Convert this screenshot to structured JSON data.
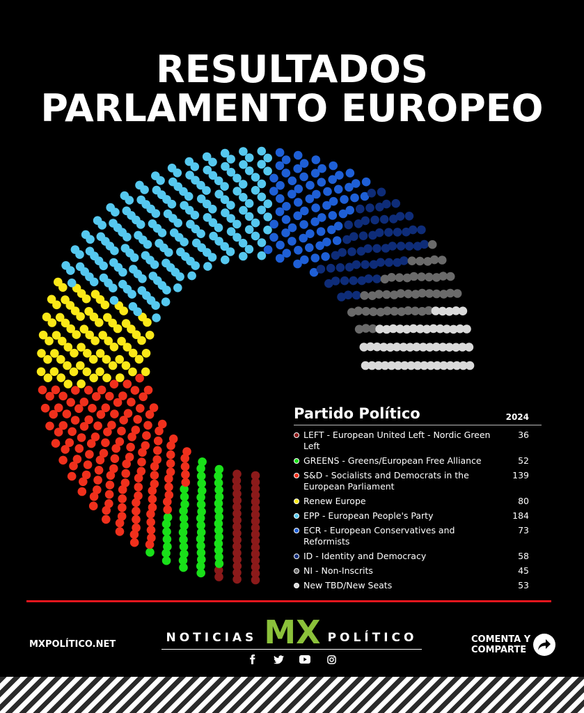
{
  "header": {
    "title_line1": "RESULTADOS",
    "title_line2": "PARLAMENTO EUROPEO"
  },
  "legend": {
    "title": "Partido Político",
    "year": "2024"
  },
  "chart_data": {
    "type": "parliament",
    "year": "2024",
    "total_seats": 720,
    "parties": [
      {
        "label": "LEFT - European United Left - Nordic Green Left",
        "seats": 36,
        "color": "#8b1a1a"
      },
      {
        "label": "GREENS - Greens/European Free Alliance",
        "seats": 52,
        "color": "#19e019"
      },
      {
        "label": "S&D - Socialists and Democrats in the European Parliament",
        "seats": 139,
        "color": "#f0301c"
      },
      {
        "label": "Renew Europe",
        "seats": 80,
        "color": "#fbe818"
      },
      {
        "label": "EPP - European People's Party",
        "seats": 184,
        "color": "#56c8ef"
      },
      {
        "label": "ECR - European Conservatives and Reformists",
        "seats": 73,
        "color": "#1e5fd6"
      },
      {
        "label": "ID - Identity and Democracy",
        "seats": 58,
        "color": "#0e2c78"
      },
      {
        "label": "NI - Non-Inscrits",
        "seats": 45,
        "color": "#6a6a6a"
      },
      {
        "label": "New TBD/New Seats",
        "seats": 53,
        "color": "#d9d9d9"
      }
    ]
  },
  "footer": {
    "site": "MXPOLÍTICO.NET",
    "brand_left": "NOTICIAS",
    "brand_mx": "MX",
    "brand_right": "POLÍTICO",
    "cta_line1": "COMENTA Y",
    "cta_line2": "COMPARTE",
    "social_icons": [
      "facebook-icon",
      "twitter-icon",
      "youtube-icon",
      "instagram-icon"
    ]
  }
}
